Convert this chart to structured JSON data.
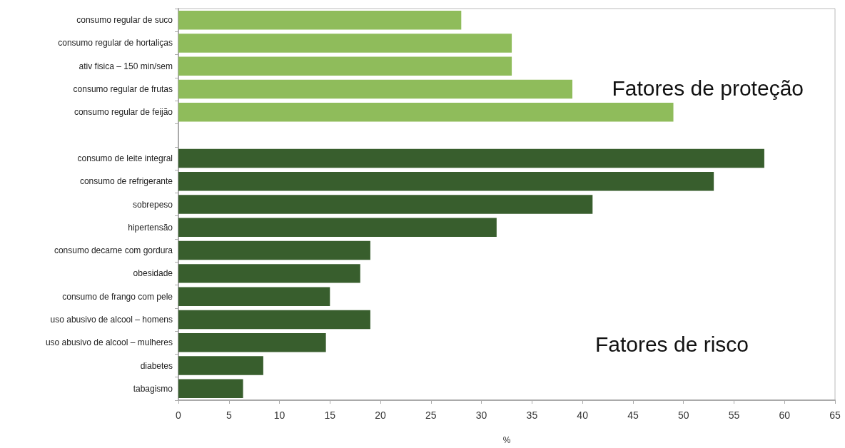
{
  "chart_data": {
    "type": "bar",
    "orientation": "horizontal",
    "xlabel": "%",
    "categories": [
      "consumo regular de suco",
      "consumo regular de hortaliças",
      "ativ fisica – 150 min/sem",
      "consumo regular de frutas",
      "consumo regular de feijão",
      null,
      "consumo de leite integral",
      "consumo de refrigerante",
      "sobrepeso",
      "hipertensão",
      "consumo decarne com gordura",
      "obesidade",
      "consumo de frango com pele",
      "uso abusivo de alcool – homens",
      "uso abusivo de alcool – mulheres",
      "diabetes",
      "tabagismo"
    ],
    "values": [
      28,
      33,
      33,
      39,
      49,
      null,
      58,
      53,
      41,
      31.5,
      19,
      18,
      15,
      19,
      14.6,
      8.4,
      6.4
    ],
    "colors": [
      "#8fbc5b",
      "#8fbc5b",
      "#8fbc5b",
      "#8fbc5b",
      "#8fbc5b",
      "#8fbc5b",
      "#385e2d",
      "#385e2d",
      "#385e2d",
      "#385e2d",
      "#385e2d",
      "#385e2d",
      "#385e2d",
      "#385e2d",
      "#385e2d",
      "#385e2d",
      "#385e2d"
    ],
    "xlim": [
      0,
      65
    ],
    "xticks": [
      0,
      5,
      10,
      15,
      20,
      25,
      30,
      35,
      40,
      45,
      50,
      55,
      60,
      65
    ],
    "annotations": [
      "Fatores de proteção",
      "Fatores de risco"
    ],
    "grid": false
  }
}
